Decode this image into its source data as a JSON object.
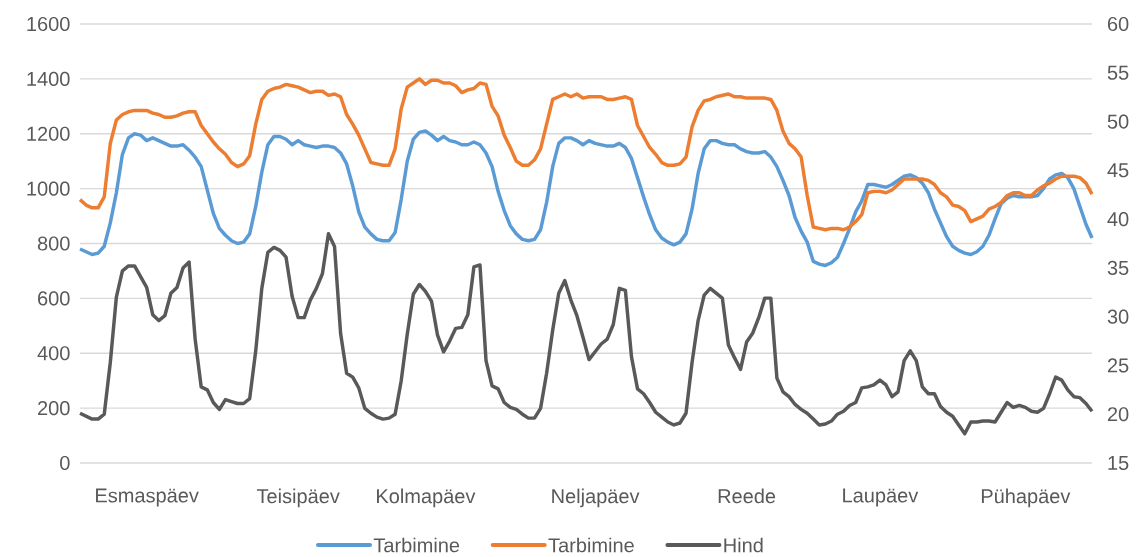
{
  "chart_data": {
    "type": "line",
    "categories": [
      null,
      null,
      null,
      null,
      null,
      null,
      null,
      null,
      null,
      null,
      null,
      "Esmaspäev",
      null,
      null,
      null,
      null,
      null,
      null,
      null,
      null,
      null,
      null,
      null,
      null,
      null,
      null,
      null,
      null,
      null,
      null,
      null,
      null,
      null,
      null,
      null,
      null,
      "Teisipäev",
      null,
      null,
      null,
      null,
      null,
      null,
      null,
      null,
      null,
      null,
      null,
      null,
      null,
      null,
      null,
      null,
      null,
      null,
      null,
      null,
      "Kolmapäev",
      null,
      null,
      null,
      null,
      null,
      null,
      null,
      null,
      null,
      null,
      null,
      null,
      null,
      null,
      null,
      null,
      null,
      null,
      null,
      null,
      null,
      null,
      null,
      null,
      null,
      null,
      null,
      "Neljapäev",
      null,
      null,
      null,
      null,
      null,
      null,
      null,
      null,
      null,
      null,
      null,
      null,
      null,
      null,
      null,
      null,
      null,
      null,
      null,
      null,
      null,
      null,
      null,
      null,
      "Reede",
      null,
      null,
      null,
      null,
      null,
      null,
      null,
      null,
      null,
      null,
      null,
      null,
      null,
      null,
      null,
      null,
      null,
      null,
      null,
      null,
      null,
      "Laupäev",
      null,
      null,
      null,
      null,
      null,
      null,
      null,
      null,
      null,
      null,
      null,
      null,
      null,
      null,
      null,
      null,
      null,
      null,
      null,
      null,
      null,
      null,
      null,
      "Pühapäev",
      null,
      null,
      null,
      null,
      null,
      null,
      null,
      null,
      null,
      null,
      null
    ],
    "ylim": [
      0,
      1600
    ],
    "yticks": [
      0,
      200,
      400,
      600,
      800,
      1000,
      1200,
      1400,
      1600
    ],
    "y2lim": [
      15,
      60
    ],
    "y2ticks": [
      15,
      20,
      25,
      30,
      35,
      40,
      45,
      50,
      55,
      60
    ],
    "grid": "y",
    "legend": "bottom",
    "series": [
      {
        "name": "Tarbimine",
        "color": "#5b9bd5",
        "values": [
          780,
          770,
          760,
          765,
          790,
          875,
          985,
          1125,
          1185,
          1200,
          1195,
          1175,
          1185,
          1175,
          1165,
          1155,
          1155,
          1160,
          1140,
          1115,
          1080,
          995,
          910,
          855,
          830,
          810,
          800,
          805,
          835,
          935,
          1060,
          1160,
          1190,
          1190,
          1180,
          1160,
          1175,
          1160,
          1155,
          1150,
          1155,
          1155,
          1150,
          1130,
          1090,
          1010,
          915,
          860,
          835,
          815,
          810,
          810,
          840,
          960,
          1100,
          1180,
          1205,
          1210,
          1195,
          1175,
          1190,
          1175,
          1170,
          1160,
          1160,
          1170,
          1160,
          1130,
          1080,
          990,
          920,
          865,
          835,
          815,
          810,
          815,
          850,
          950,
          1080,
          1165,
          1185,
          1185,
          1175,
          1160,
          1175,
          1165,
          1160,
          1155,
          1155,
          1165,
          1150,
          1110,
          1040,
          970,
          905,
          850,
          820,
          805,
          795,
          805,
          835,
          925,
          1055,
          1145,
          1175,
          1175,
          1165,
          1160,
          1160,
          1145,
          1135,
          1130,
          1130,
          1135,
          1115,
          1080,
          1030,
          975,
          895,
          845,
          805,
          735,
          725,
          720,
          730,
          750,
          800,
          855,
          915,
          955,
          1015,
          1015,
          1010,
          1005,
          1015,
          1030,
          1045,
          1050,
          1040,
          1020,
          985,
          925,
          875,
          825,
          790,
          775,
          765,
          760,
          770,
          790,
          830,
          890,
          945,
          965,
          975,
          970,
          970,
          970,
          975,
          1000,
          1035,
          1050,
          1055,
          1040,
          1000,
          935,
          870,
          820
        ]
      },
      {
        "name": "Tarbimine",
        "color": "#ed7d31",
        "values": [
          960,
          940,
          930,
          930,
          970,
          1165,
          1250,
          1270,
          1280,
          1285,
          1285,
          1285,
          1275,
          1270,
          1260,
          1260,
          1265,
          1275,
          1280,
          1280,
          1230,
          1200,
          1170,
          1145,
          1125,
          1095,
          1080,
          1090,
          1120,
          1235,
          1325,
          1355,
          1365,
          1370,
          1380,
          1375,
          1370,
          1360,
          1350,
          1355,
          1355,
          1340,
          1345,
          1335,
          1270,
          1235,
          1195,
          1145,
          1095,
          1090,
          1085,
          1085,
          1145,
          1290,
          1370,
          1385,
          1400,
          1380,
          1395,
          1395,
          1385,
          1385,
          1375,
          1350,
          1360,
          1365,
          1385,
          1380,
          1300,
          1265,
          1195,
          1150,
          1100,
          1085,
          1085,
          1105,
          1145,
          1235,
          1325,
          1335,
          1345,
          1335,
          1345,
          1330,
          1335,
          1335,
          1335,
          1325,
          1325,
          1330,
          1335,
          1325,
          1230,
          1190,
          1150,
          1125,
          1095,
          1085,
          1085,
          1090,
          1115,
          1225,
          1285,
          1320,
          1325,
          1335,
          1340,
          1345,
          1335,
          1335,
          1330,
          1330,
          1330,
          1330,
          1325,
          1285,
          1210,
          1165,
          1145,
          1115,
          975,
          860,
          855,
          850,
          855,
          855,
          850,
          860,
          880,
          905,
          985,
          990,
          990,
          985,
          995,
          1015,
          1035,
          1035,
          1035,
          1035,
          1030,
          1015,
          985,
          970,
          940,
          935,
          920,
          880,
          890,
          900,
          925,
          935,
          950,
          975,
          985,
          985,
          975,
          975,
          995,
          1010,
          1020,
          1035,
          1045,
          1045,
          1045,
          1040,
          1020,
          980
        ]
      },
      {
        "name": "Hind",
        "color": "#595959",
        "axis": "y2",
        "values": [
          20.1,
          19.8,
          19.5,
          19.5,
          20.0,
          25.3,
          32.0,
          34.7,
          35.2,
          35.2,
          34.1,
          33.0,
          30.2,
          29.6,
          30.1,
          32.4,
          33.0,
          35.0,
          35.6,
          27.7,
          22.8,
          22.5,
          21.2,
          20.5,
          21.5,
          21.3,
          21.1,
          21.1,
          21.6,
          26.5,
          32.9,
          36.6,
          37.1,
          36.8,
          36.1,
          32.1,
          29.9,
          29.9,
          31.7,
          32.9,
          34.4,
          38.5,
          37.2,
          28.3,
          24.2,
          23.8,
          22.7,
          20.6,
          20.1,
          19.7,
          19.5,
          19.6,
          20.0,
          23.4,
          28.2,
          32.3,
          33.3,
          32.6,
          31.6,
          28.1,
          26.4,
          27.5,
          28.8,
          28.9,
          30.2,
          35.1,
          35.3,
          25.5,
          22.9,
          22.6,
          21.2,
          20.7,
          20.5,
          20.0,
          19.6,
          19.6,
          20.6,
          24.2,
          28.6,
          32.4,
          33.7,
          31.7,
          30.1,
          27.9,
          25.6,
          26.4,
          27.2,
          27.7,
          29.2,
          32.9,
          32.7,
          25.9,
          22.6,
          22.1,
          21.2,
          20.2,
          19.7,
          19.2,
          18.9,
          19.1,
          20.1,
          25.3,
          29.6,
          32.2,
          32.9,
          32.4,
          31.9,
          27.1,
          25.8,
          24.6,
          27.4,
          28.3,
          29.9,
          31.9,
          31.9,
          23.7,
          22.3,
          21.8,
          21.0,
          20.5,
          20.1,
          19.5,
          18.9,
          19.0,
          19.3,
          20.0,
          20.3,
          20.9,
          21.2,
          22.7,
          22.8,
          23.0,
          23.5,
          23.0,
          21.8,
          22.3,
          25.5,
          26.5,
          25.5,
          22.8,
          22.1,
          22.1,
          20.8,
          20.2,
          19.8,
          18.9,
          18.0,
          19.2,
          19.2,
          19.3,
          19.3,
          19.2,
          20.2,
          21.2,
          20.7,
          20.9,
          20.7,
          20.3,
          20.2,
          20.6,
          22.1,
          23.8,
          23.5,
          22.5,
          21.8,
          21.7,
          21.1,
          20.3
        ]
      }
    ]
  }
}
